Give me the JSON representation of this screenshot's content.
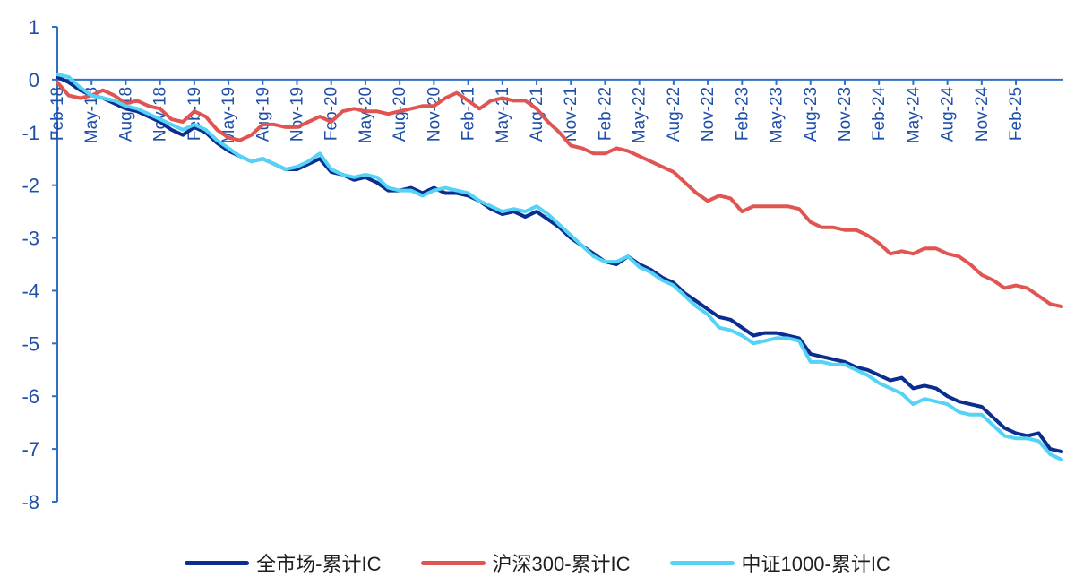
{
  "chart_data": {
    "type": "line",
    "title": "",
    "xlabel": "",
    "ylabel": "",
    "ylim": [
      -8,
      1
    ],
    "y_ticks": [
      "1",
      "0",
      "-1",
      "-2",
      "-3",
      "-4",
      "-5",
      "-6",
      "-7",
      "-8"
    ],
    "grid": false,
    "legend_position": "bottom",
    "x_tick_labels": [
      "Feb-18",
      "May-18",
      "Aug-18",
      "Nov-18",
      "Feb-19",
      "May-19",
      "Aug-19",
      "Nov-19",
      "Feb-20",
      "May-20",
      "Aug-20",
      "Nov-20",
      "Feb-21",
      "May-21",
      "Aug-21",
      "Nov-21",
      "Feb-22",
      "May-22",
      "Aug-22",
      "Nov-22",
      "Feb-23",
      "May-23",
      "Aug-23",
      "Nov-23",
      "Feb-24",
      "May-24",
      "Aug-24",
      "Nov-24",
      "Feb-25"
    ],
    "x_months": [
      "2018-02",
      "2018-03",
      "2018-04",
      "2018-05",
      "2018-06",
      "2018-07",
      "2018-08",
      "2018-09",
      "2018-10",
      "2018-11",
      "2018-12",
      "2019-01",
      "2019-02",
      "2019-03",
      "2019-04",
      "2019-05",
      "2019-06",
      "2019-07",
      "2019-08",
      "2019-09",
      "2019-10",
      "2019-11",
      "2019-12",
      "2020-01",
      "2020-02",
      "2020-03",
      "2020-04",
      "2020-05",
      "2020-06",
      "2020-07",
      "2020-08",
      "2020-09",
      "2020-10",
      "2020-11",
      "2020-12",
      "2021-01",
      "2021-02",
      "2021-03",
      "2021-04",
      "2021-05",
      "2021-06",
      "2021-07",
      "2021-08",
      "2021-09",
      "2021-10",
      "2021-11",
      "2021-12",
      "2022-01",
      "2022-02",
      "2022-03",
      "2022-04",
      "2022-05",
      "2022-06",
      "2022-07",
      "2022-08",
      "2022-09",
      "2022-10",
      "2022-11",
      "2022-12",
      "2023-01",
      "2023-02",
      "2023-03",
      "2023-04",
      "2023-05",
      "2023-06",
      "2023-07",
      "2023-08",
      "2023-09",
      "2023-10",
      "2023-11",
      "2023-12",
      "2024-01",
      "2024-02",
      "2024-03",
      "2024-04",
      "2024-05",
      "2024-06",
      "2024-07",
      "2024-08",
      "2024-09",
      "2024-10",
      "2024-11",
      "2024-12",
      "2025-01",
      "2025-02",
      "2025-03",
      "2025-04",
      "2025-05",
      "2025-06"
    ],
    "series": [
      {
        "name": "全市场-累计IC",
        "color": "#0a2d8f",
        "values": [
          0.05,
          -0.05,
          -0.2,
          -0.3,
          -0.35,
          -0.45,
          -0.55,
          -0.6,
          -0.7,
          -0.8,
          -0.95,
          -1.05,
          -0.9,
          -1.0,
          -1.2,
          -1.35,
          -1.45,
          -1.55,
          -1.5,
          -1.6,
          -1.7,
          -1.7,
          -1.6,
          -1.5,
          -1.75,
          -1.8,
          -1.9,
          -1.85,
          -1.95,
          -2.1,
          -2.1,
          -2.05,
          -2.15,
          -2.05,
          -2.15,
          -2.15,
          -2.2,
          -2.3,
          -2.45,
          -2.55,
          -2.5,
          -2.6,
          -2.5,
          -2.65,
          -2.8,
          -3.0,
          -3.15,
          -3.3,
          -3.45,
          -3.5,
          -3.35,
          -3.5,
          -3.6,
          -3.75,
          -3.85,
          -4.05,
          -4.2,
          -4.35,
          -4.5,
          -4.55,
          -4.7,
          -4.85,
          -4.8,
          -4.8,
          -4.85,
          -4.9,
          -5.2,
          -5.25,
          -5.3,
          -5.35,
          -5.45,
          -5.5,
          -5.6,
          -5.7,
          -5.65,
          -5.85,
          -5.8,
          -5.85,
          -6.0,
          -6.1,
          -6.15,
          -6.2,
          -6.4,
          -6.6,
          -6.7,
          -6.75,
          -6.7,
          -7.0,
          -7.05
        ]
      },
      {
        "name": "沪深300-累计IC",
        "color": "#e05552",
        "values": [
          -0.05,
          -0.3,
          -0.35,
          -0.3,
          -0.2,
          -0.3,
          -0.45,
          -0.4,
          -0.5,
          -0.55,
          -0.75,
          -0.8,
          -0.6,
          -0.7,
          -0.95,
          -1.1,
          -1.15,
          -1.05,
          -0.85,
          -0.85,
          -0.9,
          -0.9,
          -0.8,
          -0.7,
          -0.8,
          -0.6,
          -0.55,
          -0.6,
          -0.6,
          -0.65,
          -0.6,
          -0.55,
          -0.5,
          -0.5,
          -0.35,
          -0.25,
          -0.4,
          -0.55,
          -0.4,
          -0.35,
          -0.4,
          -0.4,
          -0.55,
          -0.8,
          -1.0,
          -1.25,
          -1.3,
          -1.4,
          -1.4,
          -1.3,
          -1.35,
          -1.45,
          -1.55,
          -1.65,
          -1.75,
          -1.95,
          -2.15,
          -2.3,
          -2.2,
          -2.25,
          -2.5,
          -2.4,
          -2.4,
          -2.4,
          -2.4,
          -2.45,
          -2.7,
          -2.8,
          -2.8,
          -2.85,
          -2.85,
          -2.95,
          -3.1,
          -3.3,
          -3.25,
          -3.3,
          -3.2,
          -3.2,
          -3.3,
          -3.35,
          -3.5,
          -3.7,
          -3.8,
          -3.95,
          -3.9,
          -3.95,
          -4.1,
          -4.25,
          -4.3
        ]
      },
      {
        "name": "中证1000-累计IC",
        "color": "#55d3f6",
        "values": [
          0.1,
          0.05,
          -0.15,
          -0.3,
          -0.35,
          -0.4,
          -0.5,
          -0.55,
          -0.65,
          -0.75,
          -0.85,
          -0.95,
          -0.85,
          -0.95,
          -1.15,
          -1.3,
          -1.45,
          -1.55,
          -1.5,
          -1.6,
          -1.7,
          -1.65,
          -1.55,
          -1.4,
          -1.7,
          -1.8,
          -1.85,
          -1.8,
          -1.85,
          -2.05,
          -2.1,
          -2.1,
          -2.2,
          -2.1,
          -2.05,
          -2.1,
          -2.15,
          -2.3,
          -2.4,
          -2.5,
          -2.45,
          -2.5,
          -2.4,
          -2.55,
          -2.75,
          -2.95,
          -3.15,
          -3.35,
          -3.45,
          -3.45,
          -3.35,
          -3.55,
          -3.65,
          -3.8,
          -3.9,
          -4.1,
          -4.3,
          -4.45,
          -4.7,
          -4.75,
          -4.85,
          -5.0,
          -4.95,
          -4.9,
          -4.9,
          -4.95,
          -5.35,
          -5.35,
          -5.4,
          -5.4,
          -5.5,
          -5.6,
          -5.75,
          -5.85,
          -5.95,
          -6.15,
          -6.05,
          -6.1,
          -6.15,
          -6.3,
          -6.35,
          -6.35,
          -6.55,
          -6.75,
          -6.8,
          -6.8,
          -6.85,
          -7.1,
          -7.2
        ]
      }
    ]
  }
}
